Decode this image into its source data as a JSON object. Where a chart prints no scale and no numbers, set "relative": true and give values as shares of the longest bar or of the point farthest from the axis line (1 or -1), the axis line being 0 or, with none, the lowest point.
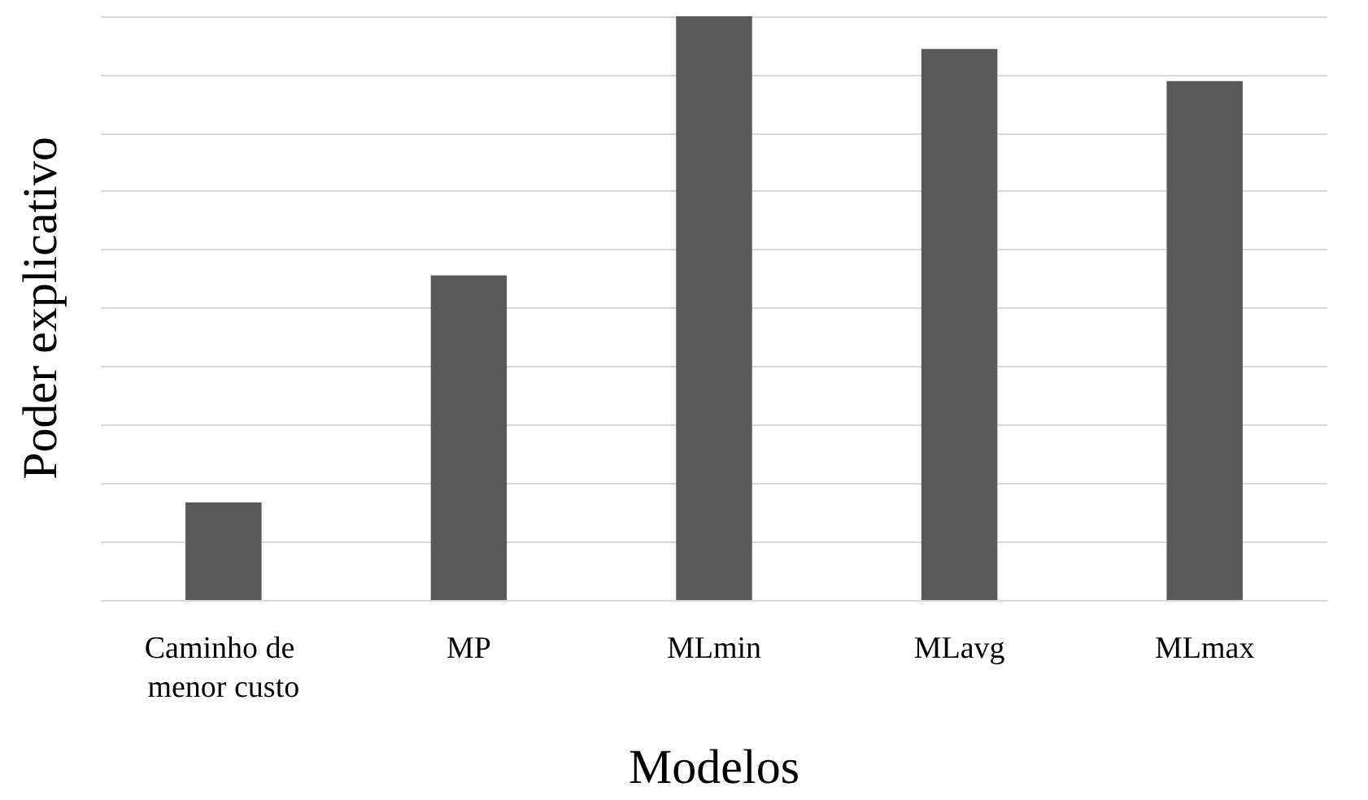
{
  "chart_data": {
    "type": "bar",
    "xlabel": "Modelos",
    "ylabel": "Poder explicativo",
    "categories": [
      "Caminho de menor custo",
      "MP",
      "MLmin",
      "MLavg",
      "MLmax"
    ],
    "values": [
      0.167,
      0.556,
      1,
      0.944,
      0.889
    ],
    "color": "#595959",
    "relative": true,
    "grid": "y"
  }
}
